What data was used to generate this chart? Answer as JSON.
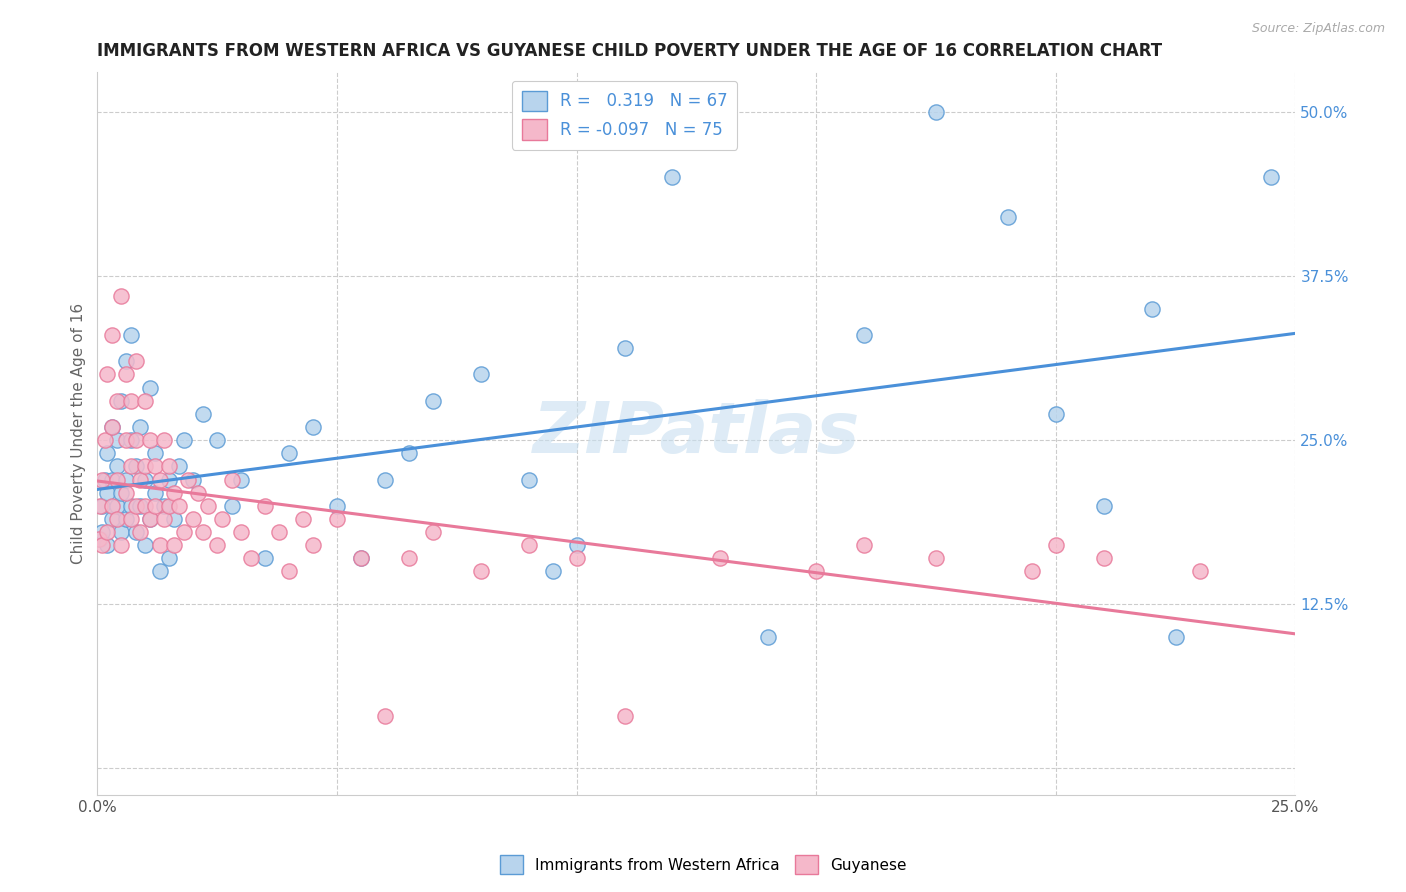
{
  "title": "IMMIGRANTS FROM WESTERN AFRICA VS GUYANESE CHILD POVERTY UNDER THE AGE OF 16 CORRELATION CHART",
  "source": "Source: ZipAtlas.com",
  "ylabel": "Child Poverty Under the Age of 16",
  "xlim": [
    0.0,
    0.25
  ],
  "ylim": [
    -0.02,
    0.53
  ],
  "r_blue": 0.319,
  "n_blue": 67,
  "r_pink": -0.097,
  "n_pink": 75,
  "legend_labels": [
    "Immigrants from Western Africa",
    "Guyanese"
  ],
  "blue_color": "#b8d4ed",
  "pink_color": "#f5b8ca",
  "blue_edge_color": "#5b9bd5",
  "pink_edge_color": "#e8799a",
  "blue_line_color": "#4a90d9",
  "pink_line_color": "#e8799a",
  "watermark": "ZIPatlas",
  "background_color": "#ffffff",
  "blue_x": [
    0.0005,
    0.001,
    0.001,
    0.0015,
    0.002,
    0.002,
    0.002,
    0.003,
    0.003,
    0.003,
    0.004,
    0.004,
    0.004,
    0.005,
    0.005,
    0.005,
    0.006,
    0.006,
    0.006,
    0.007,
    0.007,
    0.007,
    0.008,
    0.008,
    0.009,
    0.009,
    0.01,
    0.01,
    0.011,
    0.011,
    0.012,
    0.012,
    0.013,
    0.014,
    0.015,
    0.015,
    0.016,
    0.017,
    0.018,
    0.02,
    0.022,
    0.025,
    0.028,
    0.03,
    0.035,
    0.04,
    0.045,
    0.05,
    0.055,
    0.06,
    0.065,
    0.07,
    0.08,
    0.09,
    0.095,
    0.1,
    0.11,
    0.12,
    0.14,
    0.16,
    0.175,
    0.19,
    0.2,
    0.21,
    0.22,
    0.225,
    0.245
  ],
  "blue_y": [
    0.175,
    0.18,
    0.2,
    0.22,
    0.17,
    0.21,
    0.24,
    0.19,
    0.22,
    0.26,
    0.2,
    0.23,
    0.25,
    0.18,
    0.21,
    0.28,
    0.19,
    0.22,
    0.31,
    0.2,
    0.25,
    0.33,
    0.18,
    0.23,
    0.2,
    0.26,
    0.17,
    0.22,
    0.19,
    0.29,
    0.21,
    0.24,
    0.15,
    0.2,
    0.16,
    0.22,
    0.19,
    0.23,
    0.25,
    0.22,
    0.27,
    0.25,
    0.2,
    0.22,
    0.16,
    0.24,
    0.26,
    0.2,
    0.16,
    0.22,
    0.24,
    0.28,
    0.3,
    0.22,
    0.15,
    0.17,
    0.32,
    0.45,
    0.1,
    0.33,
    0.5,
    0.42,
    0.27,
    0.2,
    0.35,
    0.1,
    0.45
  ],
  "pink_x": [
    0.0003,
    0.0005,
    0.001,
    0.001,
    0.0015,
    0.002,
    0.002,
    0.003,
    0.003,
    0.003,
    0.004,
    0.004,
    0.004,
    0.005,
    0.005,
    0.006,
    0.006,
    0.006,
    0.007,
    0.007,
    0.007,
    0.008,
    0.008,
    0.008,
    0.009,
    0.009,
    0.01,
    0.01,
    0.01,
    0.011,
    0.011,
    0.012,
    0.012,
    0.013,
    0.013,
    0.014,
    0.014,
    0.015,
    0.015,
    0.016,
    0.016,
    0.017,
    0.018,
    0.019,
    0.02,
    0.021,
    0.022,
    0.023,
    0.025,
    0.026,
    0.028,
    0.03,
    0.032,
    0.035,
    0.038,
    0.04,
    0.043,
    0.045,
    0.05,
    0.055,
    0.06,
    0.065,
    0.07,
    0.08,
    0.09,
    0.1,
    0.11,
    0.13,
    0.15,
    0.16,
    0.175,
    0.195,
    0.2,
    0.21,
    0.23
  ],
  "pink_y": [
    0.175,
    0.2,
    0.17,
    0.22,
    0.25,
    0.18,
    0.3,
    0.2,
    0.26,
    0.33,
    0.19,
    0.22,
    0.28,
    0.17,
    0.36,
    0.21,
    0.25,
    0.3,
    0.19,
    0.23,
    0.28,
    0.2,
    0.25,
    0.31,
    0.18,
    0.22,
    0.2,
    0.23,
    0.28,
    0.19,
    0.25,
    0.2,
    0.23,
    0.17,
    0.22,
    0.19,
    0.25,
    0.2,
    0.23,
    0.17,
    0.21,
    0.2,
    0.18,
    0.22,
    0.19,
    0.21,
    0.18,
    0.2,
    0.17,
    0.19,
    0.22,
    0.18,
    0.16,
    0.2,
    0.18,
    0.15,
    0.19,
    0.17,
    0.19,
    0.16,
    0.04,
    0.16,
    0.18,
    0.15,
    0.17,
    0.16,
    0.04,
    0.16,
    0.15,
    0.17,
    0.16,
    0.15,
    0.17,
    0.16,
    0.15
  ]
}
